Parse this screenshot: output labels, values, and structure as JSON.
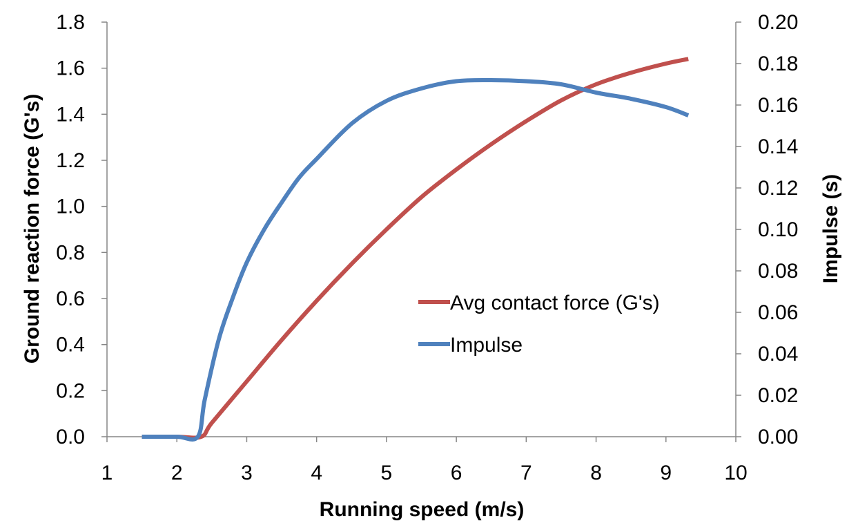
{
  "chart_data": {
    "type": "line",
    "xlabel": "Running speed (m/s)",
    "ylabel": "Ground reaction force (G's)",
    "y2label": "Impulse (s)",
    "xlim": [
      1,
      10
    ],
    "ylim": [
      0,
      1.8
    ],
    "y2lim": [
      0,
      0.2
    ],
    "x_ticks": [
      "1",
      "2",
      "3",
      "4",
      "5",
      "6",
      "7",
      "8",
      "9",
      "10"
    ],
    "y_ticks": [
      "0.0",
      "0.2",
      "0.4",
      "0.6",
      "0.8",
      "1.0",
      "1.2",
      "1.4",
      "1.6",
      "1.8"
    ],
    "y2_ticks": [
      "0.00",
      "0.02",
      "0.04",
      "0.06",
      "0.08",
      "0.10",
      "0.12",
      "0.14",
      "0.16",
      "0.18",
      "0.20"
    ],
    "grid": false,
    "legend_position": "center-right",
    "series": [
      {
        "name": "Avg contact force (G's)",
        "color": "#c0504d",
        "axis": "left",
        "x": [
          1.5,
          2.0,
          2.35,
          2.5,
          3.0,
          3.5,
          4.0,
          4.5,
          5.0,
          5.5,
          6.0,
          6.5,
          7.0,
          7.5,
          8.0,
          8.5,
          9.0,
          9.32
        ],
        "y": [
          0.0,
          0.0,
          0.0,
          0.06,
          0.24,
          0.42,
          0.59,
          0.75,
          0.9,
          1.04,
          1.16,
          1.27,
          1.37,
          1.46,
          1.53,
          1.58,
          1.62,
          1.64
        ]
      },
      {
        "name": "Impulse",
        "color": "#4f81bd",
        "axis": "right",
        "x": [
          1.5,
          2.0,
          2.3,
          2.4,
          2.6,
          2.8,
          3.0,
          3.25,
          3.5,
          3.75,
          4.0,
          4.5,
          5.0,
          5.5,
          6.0,
          6.5,
          7.0,
          7.5,
          8.0,
          8.5,
          9.0,
          9.32
        ],
        "y": [
          0.0,
          0.0,
          0.0,
          0.018,
          0.047,
          0.067,
          0.084,
          0.1,
          0.113,
          0.125,
          0.134,
          0.151,
          0.162,
          0.168,
          0.1715,
          0.172,
          0.1715,
          0.17,
          0.166,
          0.163,
          0.159,
          0.155
        ]
      }
    ]
  }
}
